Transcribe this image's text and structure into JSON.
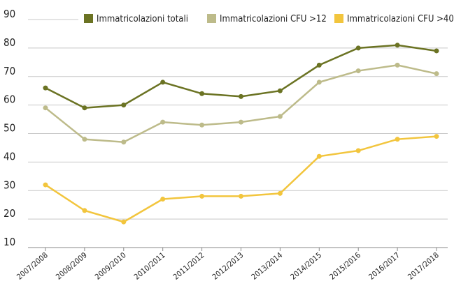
{
  "chart_data": {
    "type": "line",
    "categories": [
      "2007/2008",
      "2008/2009",
      "2009/2010",
      "2010/2011",
      "2011/2012",
      "2012/2013",
      "2013/2014",
      "2014/2015",
      "2015/2016",
      "2016/2017",
      "2017/2018"
    ],
    "series": [
      {
        "name": "Immatricolazioni totali",
        "color": "#6b7323",
        "values": [
          66,
          59,
          60,
          68,
          64,
          63,
          65,
          74,
          80,
          81,
          79
        ]
      },
      {
        "name": "Immatricolazioni CFU >12",
        "color": "#bdbb8a",
        "values": [
          59,
          48,
          47,
          54,
          53,
          54,
          56,
          68,
          72,
          74,
          71
        ]
      },
      {
        "name": "Immatricolazioni CFU >40",
        "color": "#f2c53d",
        "values": [
          32,
          23,
          19,
          27,
          28,
          28,
          29,
          42,
          44,
          48,
          49
        ]
      }
    ],
    "ylim": [
      10,
      90
    ],
    "yticks": [
      10,
      20,
      30,
      40,
      50,
      60,
      70,
      80,
      90
    ],
    "grid": true,
    "legend": "top"
  }
}
